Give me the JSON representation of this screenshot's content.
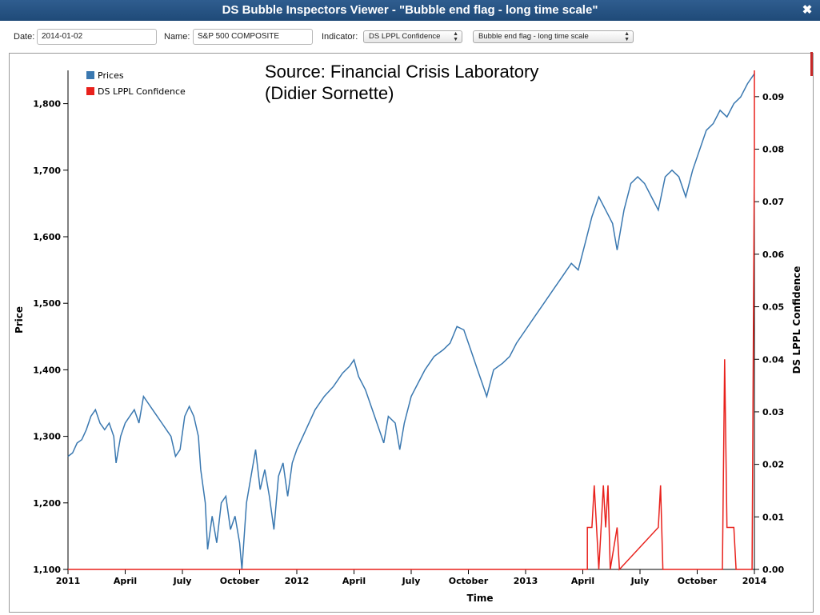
{
  "window": {
    "title": "DS Bubble Inspectors Viewer - \"Bubble end flag - long time scale\""
  },
  "toolbar": {
    "date_label": "Date:",
    "date_value": "2014-01-02",
    "name_label": "Name:",
    "name_value": "S&P 500 COMPOSITE",
    "indicator_label": "Indicator:",
    "indicator_value": "DS LPPL Confidence",
    "scale_value": "Bubble end flag - long time scale"
  },
  "icons": {
    "close": "close-icon",
    "select_arrows": "up-down-arrows-icon"
  },
  "colors": {
    "prices": "#3a78b0",
    "confidence": "#e8211c",
    "titlebar": "#2a5688"
  },
  "chart_data": {
    "type": "line",
    "annotation": "Source: Financial Crisis Laboratory\n(Didier Sornette)",
    "xlabel": "Time",
    "ylabel": "Price",
    "y2label": "DS LPPL Confidence",
    "legend": {
      "placement": "top-left",
      "entries": [
        "Prices",
        "DS LPPL Confidence"
      ]
    },
    "grid": false,
    "xlim": [
      2011.0,
      2014.0
    ],
    "ylim": [
      1100,
      1850
    ],
    "y2lim": [
      0,
      0.095
    ],
    "x_ticks": [
      {
        "x": 2011.0,
        "label": "2011"
      },
      {
        "x": 2011.25,
        "label": "April"
      },
      {
        "x": 2011.5,
        "label": "July"
      },
      {
        "x": 2011.75,
        "label": "October"
      },
      {
        "x": 2012.0,
        "label": "2012"
      },
      {
        "x": 2012.25,
        "label": "April"
      },
      {
        "x": 2012.5,
        "label": "July"
      },
      {
        "x": 2012.75,
        "label": "October"
      },
      {
        "x": 2013.0,
        "label": "2013"
      },
      {
        "x": 2013.25,
        "label": "April"
      },
      {
        "x": 2013.5,
        "label": "July"
      },
      {
        "x": 2013.75,
        "label": "October"
      },
      {
        "x": 2014.0,
        "label": "2014"
      }
    ],
    "y_ticks": [
      {
        "v": 1100,
        "label": "1,100"
      },
      {
        "v": 1200,
        "label": "1,200"
      },
      {
        "v": 1300,
        "label": "1,300"
      },
      {
        "v": 1400,
        "label": "1,400"
      },
      {
        "v": 1500,
        "label": "1,500"
      },
      {
        "v": 1600,
        "label": "1,600"
      },
      {
        "v": 1700,
        "label": "1,700"
      },
      {
        "v": 1800,
        "label": "1,800"
      }
    ],
    "y2_ticks": [
      {
        "v": 0.0,
        "label": "0.00"
      },
      {
        "v": 0.01,
        "label": "0.01"
      },
      {
        "v": 0.02,
        "label": "0.02"
      },
      {
        "v": 0.03,
        "label": "0.03"
      },
      {
        "v": 0.04,
        "label": "0.04"
      },
      {
        "v": 0.05,
        "label": "0.05"
      },
      {
        "v": 0.06,
        "label": "0.06"
      },
      {
        "v": 0.07,
        "label": "0.07"
      },
      {
        "v": 0.08,
        "label": "0.08"
      },
      {
        "v": 0.09,
        "label": "0.09"
      }
    ],
    "series": [
      {
        "name": "Prices",
        "axis": "left",
        "points": [
          [
            2011.0,
            1270
          ],
          [
            2011.02,
            1275
          ],
          [
            2011.04,
            1290
          ],
          [
            2011.06,
            1295
          ],
          [
            2011.08,
            1310
          ],
          [
            2011.1,
            1330
          ],
          [
            2011.12,
            1340
          ],
          [
            2011.14,
            1320
          ],
          [
            2011.16,
            1310
          ],
          [
            2011.18,
            1320
          ],
          [
            2011.2,
            1300
          ],
          [
            2011.21,
            1260
          ],
          [
            2011.23,
            1300
          ],
          [
            2011.25,
            1320
          ],
          [
            2011.27,
            1330
          ],
          [
            2011.29,
            1340
          ],
          [
            2011.31,
            1320
          ],
          [
            2011.33,
            1360
          ],
          [
            2011.35,
            1350
          ],
          [
            2011.37,
            1340
          ],
          [
            2011.39,
            1330
          ],
          [
            2011.41,
            1320
          ],
          [
            2011.43,
            1310
          ],
          [
            2011.45,
            1300
          ],
          [
            2011.47,
            1270
          ],
          [
            2011.49,
            1280
          ],
          [
            2011.51,
            1330
          ],
          [
            2011.53,
            1345
          ],
          [
            2011.55,
            1330
          ],
          [
            2011.57,
            1300
          ],
          [
            2011.58,
            1250
          ],
          [
            2011.6,
            1200
          ],
          [
            2011.61,
            1130
          ],
          [
            2011.63,
            1180
          ],
          [
            2011.65,
            1140
          ],
          [
            2011.67,
            1200
          ],
          [
            2011.69,
            1210
          ],
          [
            2011.71,
            1160
          ],
          [
            2011.73,
            1180
          ],
          [
            2011.75,
            1140
          ],
          [
            2011.76,
            1100
          ],
          [
            2011.78,
            1200
          ],
          [
            2011.8,
            1240
          ],
          [
            2011.82,
            1280
          ],
          [
            2011.84,
            1220
          ],
          [
            2011.86,
            1250
          ],
          [
            2011.88,
            1210
          ],
          [
            2011.9,
            1160
          ],
          [
            2011.92,
            1240
          ],
          [
            2011.94,
            1260
          ],
          [
            2011.96,
            1210
          ],
          [
            2011.98,
            1260
          ],
          [
            2012.0,
            1280
          ],
          [
            2012.04,
            1310
          ],
          [
            2012.08,
            1340
          ],
          [
            2012.12,
            1360
          ],
          [
            2012.16,
            1375
          ],
          [
            2012.2,
            1395
          ],
          [
            2012.23,
            1405
          ],
          [
            2012.25,
            1415
          ],
          [
            2012.27,
            1390
          ],
          [
            2012.3,
            1370
          ],
          [
            2012.33,
            1340
          ],
          [
            2012.36,
            1310
          ],
          [
            2012.38,
            1290
          ],
          [
            2012.4,
            1330
          ],
          [
            2012.43,
            1320
          ],
          [
            2012.45,
            1280
          ],
          [
            2012.47,
            1320
          ],
          [
            2012.5,
            1360
          ],
          [
            2012.53,
            1380
          ],
          [
            2012.56,
            1400
          ],
          [
            2012.6,
            1420
          ],
          [
            2012.64,
            1430
          ],
          [
            2012.67,
            1440
          ],
          [
            2012.7,
            1465
          ],
          [
            2012.73,
            1460
          ],
          [
            2012.76,
            1430
          ],
          [
            2012.79,
            1400
          ],
          [
            2012.81,
            1380
          ],
          [
            2012.83,
            1360
          ],
          [
            2012.86,
            1400
          ],
          [
            2012.9,
            1410
          ],
          [
            2012.93,
            1420
          ],
          [
            2012.96,
            1440
          ],
          [
            2013.0,
            1460
          ],
          [
            2013.04,
            1480
          ],
          [
            2013.08,
            1500
          ],
          [
            2013.12,
            1520
          ],
          [
            2013.16,
            1540
          ],
          [
            2013.2,
            1560
          ],
          [
            2013.23,
            1550
          ],
          [
            2013.26,
            1590
          ],
          [
            2013.29,
            1630
          ],
          [
            2013.32,
            1660
          ],
          [
            2013.35,
            1640
          ],
          [
            2013.38,
            1620
          ],
          [
            2013.4,
            1580
          ],
          [
            2013.43,
            1640
          ],
          [
            2013.46,
            1680
          ],
          [
            2013.49,
            1690
          ],
          [
            2013.52,
            1680
          ],
          [
            2013.55,
            1660
          ],
          [
            2013.58,
            1640
          ],
          [
            2013.61,
            1690
          ],
          [
            2013.64,
            1700
          ],
          [
            2013.67,
            1690
          ],
          [
            2013.7,
            1660
          ],
          [
            2013.73,
            1700
          ],
          [
            2013.76,
            1730
          ],
          [
            2013.79,
            1760
          ],
          [
            2013.82,
            1770
          ],
          [
            2013.85,
            1790
          ],
          [
            2013.88,
            1780
          ],
          [
            2013.91,
            1800
          ],
          [
            2013.94,
            1810
          ],
          [
            2013.97,
            1830
          ],
          [
            2014.0,
            1845
          ]
        ]
      },
      {
        "name": "DS LPPL Confidence",
        "axis": "right",
        "points": [
          [
            2011.0,
            0.0
          ],
          [
            2013.27,
            0.0
          ],
          [
            2013.27,
            0.008
          ],
          [
            2013.29,
            0.008
          ],
          [
            2013.3,
            0.016
          ],
          [
            2013.31,
            0.008
          ],
          [
            2013.32,
            0.0
          ],
          [
            2013.33,
            0.008
          ],
          [
            2013.34,
            0.016
          ],
          [
            2013.35,
            0.008
          ],
          [
            2013.36,
            0.016
          ],
          [
            2013.37,
            0.0
          ],
          [
            2013.4,
            0.008
          ],
          [
            2013.41,
            0.0
          ],
          [
            2013.58,
            0.008
          ],
          [
            2013.59,
            0.016
          ],
          [
            2013.6,
            0.0
          ],
          [
            2013.86,
            0.0
          ],
          [
            2013.87,
            0.04
          ],
          [
            2013.88,
            0.008
          ],
          [
            2013.89,
            0.008
          ],
          [
            2013.9,
            0.008
          ],
          [
            2013.91,
            0.008
          ],
          [
            2013.92,
            0.0
          ],
          [
            2013.99,
            0.0
          ],
          [
            2014.0,
            0.08
          ],
          [
            2014.0,
            0.095
          ]
        ]
      }
    ]
  }
}
